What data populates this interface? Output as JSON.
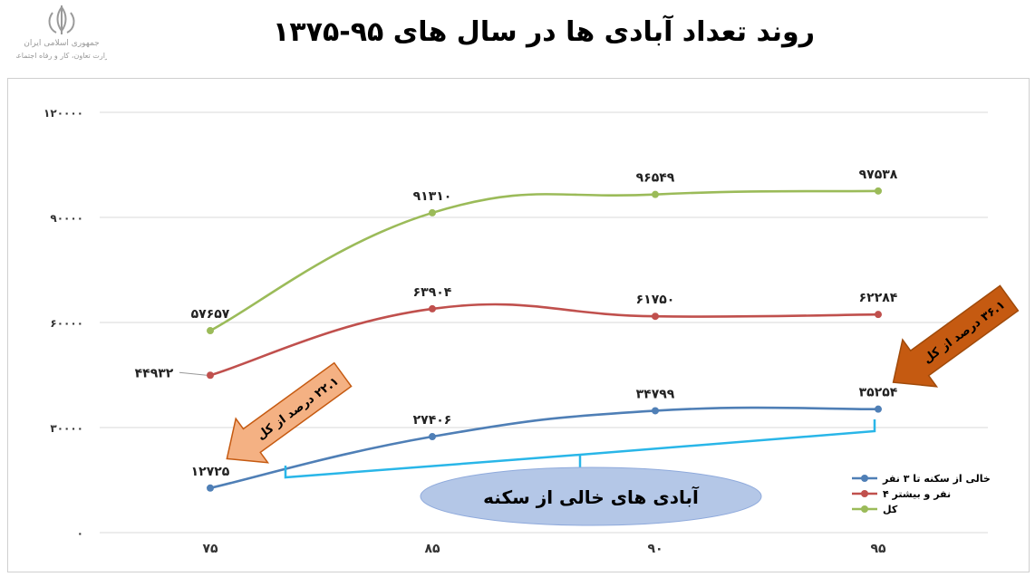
{
  "title": "روند تعداد آبادی ها در سال های ۹۵-۱۳۷۵",
  "emblem": {
    "icon": "iran-emblem-icon",
    "line1": "جمهوری اسلامی ایران",
    "line2": "وزارت تعاون، کار و رفاه اجتماعی"
  },
  "annotations": {
    "arrow_left": "۲۲.۱ درصد از کل",
    "arrow_right": "۳۶.۱ درصد از کل",
    "ellipse": "آبادی های خالی از سکنه",
    "arrow_color": "#f4b183",
    "arrow_edge": "#c55a11",
    "arrow_right_color": "#c55a11",
    "ellipse_color": "#b4c7e7",
    "bracket_color": "#29b6e8"
  },
  "chart_data": {
    "type": "line",
    "x": [
      "۷۵",
      "۸۵",
      "۹۰",
      "۹۵"
    ],
    "ylim": [
      0,
      120000
    ],
    "yticks": [
      0,
      30000,
      60000,
      90000,
      120000
    ],
    "ytick_labels": [
      "۰",
      "۳۰۰۰۰",
      "۶۰۰۰۰",
      "۹۰۰۰۰",
      "۱۲۰۰۰۰"
    ],
    "grid": true,
    "legend_position": "bottom-right",
    "series": [
      {
        "name": "خالی از سکنه تا ۳ نفر",
        "color": "#4f7fb6",
        "values": [
          12725,
          27406,
          34799,
          35254
        ],
        "labels": [
          "۱۲۷۲۵",
          "۲۷۴۰۶",
          "۳۴۷۹۹",
          "۳۵۲۵۴"
        ]
      },
      {
        "name": "۴ نفر و بیشتر",
        "color": "#c0504d",
        "values": [
          44932,
          63904,
          61750,
          62284
        ],
        "labels": [
          "۴۴۹۳۲",
          "۶۳۹۰۴",
          "۶۱۷۵۰",
          "۶۲۲۸۴"
        ]
      },
      {
        "name": "کل",
        "color": "#9bbb59",
        "values": [
          57657,
          91310,
          96549,
          97538
        ],
        "labels": [
          "۵۷۶۵۷",
          "۹۱۳۱۰",
          "۹۶۵۴۹",
          "۹۷۵۳۸"
        ]
      }
    ]
  }
}
